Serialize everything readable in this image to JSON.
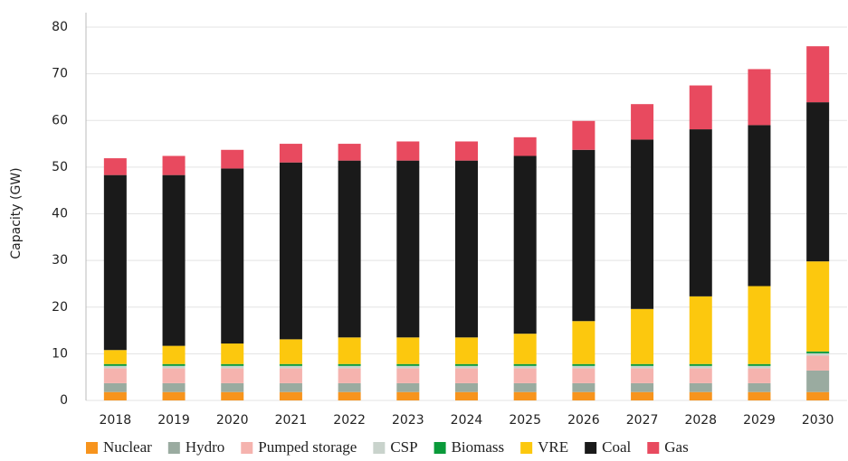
{
  "chart_data": {
    "type": "stacked_bar",
    "y_label": "Capacity (GW)",
    "categories": [
      "2018",
      "2019",
      "2020",
      "2021",
      "2022",
      "2023",
      "2024",
      "2025",
      "2026",
      "2027",
      "2028",
      "2029",
      "2030"
    ],
    "series": [
      {
        "name": "Nuclear",
        "color": "#f7941d",
        "values": [
          1.8,
          1.8,
          1.8,
          1.8,
          1.8,
          1.8,
          1.8,
          1.8,
          1.8,
          1.8,
          1.8,
          1.8,
          1.8
        ]
      },
      {
        "name": "Hydro",
        "color": "#9aaba0",
        "values": [
          1.9,
          1.9,
          1.9,
          1.9,
          1.9,
          1.9,
          1.9,
          1.9,
          1.9,
          1.9,
          1.9,
          1.9,
          4.6
        ]
      },
      {
        "name": "Pumped storage",
        "color": "#f5b3ae",
        "values": [
          3.2,
          3.2,
          3.2,
          3.2,
          3.2,
          3.2,
          3.2,
          3.2,
          3.2,
          3.2,
          3.2,
          3.2,
          3.2
        ]
      },
      {
        "name": "CSP",
        "color": "#c9d3cc",
        "values": [
          0.5,
          0.5,
          0.5,
          0.5,
          0.5,
          0.5,
          0.5,
          0.5,
          0.5,
          0.5,
          0.5,
          0.5,
          0.5
        ]
      },
      {
        "name": "Biomass",
        "color": "#0a9a3a",
        "values": [
          0.4,
          0.4,
          0.4,
          0.4,
          0.4,
          0.4,
          0.4,
          0.4,
          0.4,
          0.4,
          0.4,
          0.4,
          0.4
        ]
      },
      {
        "name": "VRE",
        "color": "#fcc80e",
        "values": [
          3.0,
          3.9,
          4.4,
          5.3,
          5.7,
          5.7,
          5.7,
          6.5,
          9.2,
          11.8,
          14.5,
          16.7,
          19.3
        ]
      },
      {
        "name": "Coal",
        "color": "#1a1a1a",
        "values": [
          37.5,
          36.6,
          37.5,
          37.9,
          37.9,
          37.9,
          37.9,
          38.1,
          36.7,
          36.3,
          35.8,
          34.5,
          34.1
        ]
      },
      {
        "name": "Gas",
        "color": "#e84a5f",
        "values": [
          3.6,
          4.1,
          4.0,
          4.0,
          3.6,
          4.1,
          4.1,
          4.0,
          6.2,
          7.6,
          9.4,
          12.0,
          12.0
        ]
      }
    ],
    "ylim": [
      0,
      80
    ],
    "yticks": [
      0,
      10,
      20,
      30,
      40,
      50,
      60,
      70,
      80
    ],
    "grid": true
  }
}
